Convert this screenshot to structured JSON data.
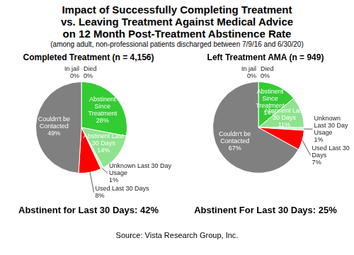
{
  "title": [
    "Impact of Successfully Completing Treatment",
    "vs. Leaving Treatment Against Medical Advice",
    "on 12 Month Post-Treatment Abstinence Rate"
  ],
  "subtitle": "(among adult, non-professional patients discharged between 7/9/16 and 6/30/20)",
  "source": "Source: Vista Research Group, Inc.",
  "chart_data": [
    {
      "type": "pie",
      "title": "Completed Treatment (n = 4,156)",
      "categories": [
        "In jail",
        "Died",
        "Abstinent Since Treatment",
        "Abstinent Last 30 Days",
        "Unknown Last 30 Day Usage",
        "Used Last 30 Days",
        "Couldn't be Contacted"
      ],
      "values": [
        0,
        0,
        28,
        14,
        1,
        8,
        49
      ],
      "value_labels": [
        "0%",
        "0%",
        "28%",
        "14%",
        "1%",
        "8%",
        "49%"
      ],
      "colors": [
        "#1f3864",
        "#000000",
        "#33cc33",
        "#8fe38f",
        "#ccf5cc",
        "#ff0000",
        "#808080"
      ],
      "data_labels": true,
      "annotation": "Abstinent for Last 30 Days: 42%"
    },
    {
      "type": "pie",
      "title": "Left Treatment AMA (n = 949)",
      "categories": [
        "In jail",
        "Died",
        "Abstinent Since Treatment",
        "Abstinent Last 30 Days",
        "Unknown Last 30 Day Usage",
        "Used Last 30 Days",
        "Couldn't be Contacted"
      ],
      "values": [
        0,
        0,
        14,
        11,
        1,
        7,
        67
      ],
      "value_labels": [
        "0%",
        "0%",
        "14%",
        "11%",
        "1%",
        "7%",
        "67%"
      ],
      "colors": [
        "#1f3864",
        "#000000",
        "#33cc33",
        "#8fe38f",
        "#ccf5cc",
        "#ff0000",
        "#808080"
      ],
      "data_labels": true,
      "annotation": "Abstinent For Last 30 Days: 25%"
    }
  ]
}
